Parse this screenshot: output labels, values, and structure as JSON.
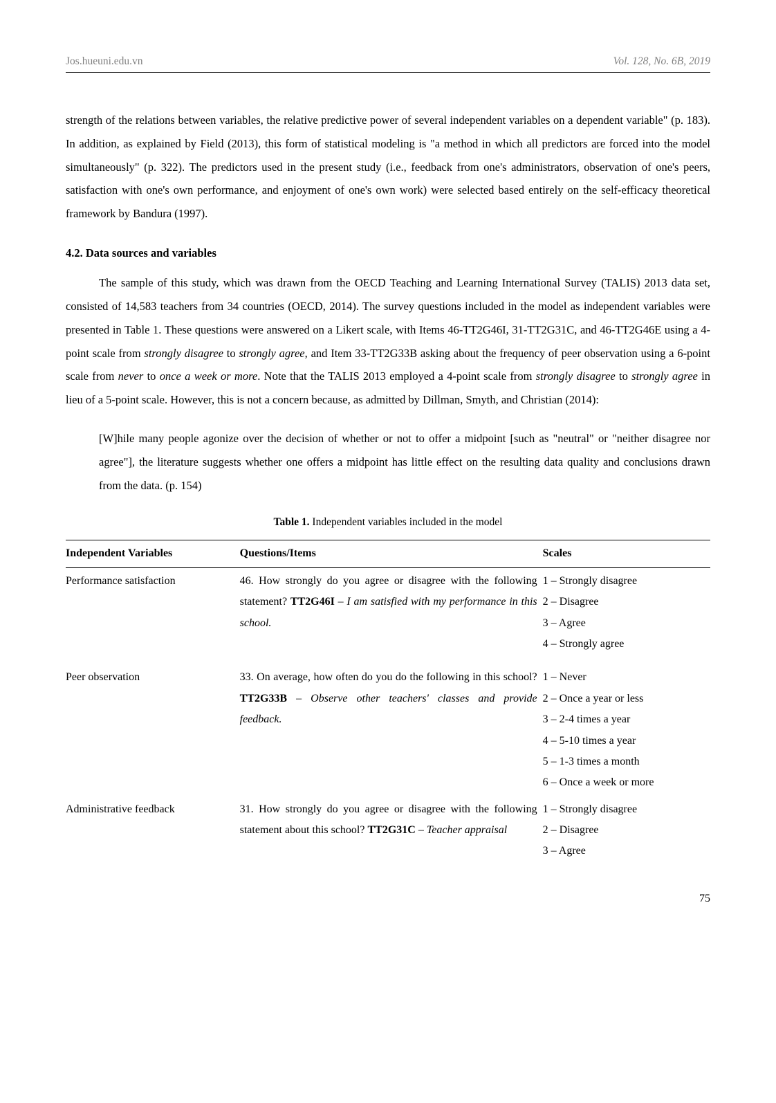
{
  "header": {
    "left": "Jos.hueuni.edu.vn",
    "right": "Vol. 128, No. 6B, 2019"
  },
  "para1": "strength of the relations between variables, the relative predictive power of several independent variables on a dependent variable\" (p. 183). In addition, as explained by Field (2013), this form of statistical modeling is \"a method in which all predictors are forced into the model simultaneously\" (p. 322). The predictors used in the present study (i.e., feedback from one's administrators, observation of one's peers, satisfaction with one's own performance, and enjoyment of one's own work) were selected based entirely on the self-efficacy theoretical framework by Bandura (1997).",
  "section42": "4.2.    Data sources and variables",
  "para2a": "The sample of this study, which was drawn from the OECD Teaching and Learning International Survey (TALIS) 2013 data set, consisted of 14,583 teachers from 34 countries (OECD, 2014). The survey questions included in the model as independent variables were presented in Table 1. These questions were answered on a Likert scale, with Items 46-TT2G46I, 31-TT2G31C, and 46-TT2G46E using a 4-point scale from ",
  "para2b": "strongly disagree",
  "para2c": " to ",
  "para2d": "strongly agree",
  "para2e": ", and Item 33-TT2G33B asking about the frequency of peer observation using a 6-point scale from ",
  "para2f": "never",
  "para2g": " to ",
  "para2h": "once a week or more",
  "para2i": ". Note that the TALIS 2013 employed a 4-point scale from ",
  "para2j": "strongly disagree",
  "para2k": " to ",
  "para2l": "strongly agree",
  "para2m": " in lieu of a 5-point scale. However, this is not a concern because, as admitted by Dillman, Smyth, and Christian (2014):",
  "quote": "[W]hile many people agonize over the decision of whether or not to offer a midpoint [such as \"neutral\" or \"neither disagree nor agree\"], the literature suggests whether one offers a midpoint has little effect on the resulting data quality and conclusions drawn from the data. (p. 154)",
  "tableCaption": {
    "bold": "Table 1.",
    "rest": " Independent variables included in the model"
  },
  "table": {
    "headers": [
      "Independent Variables",
      "Questions/Items",
      "Scales"
    ],
    "rows": [
      {
        "iv": "Performance satisfaction",
        "q_pre": "46. How strongly do you agree or disagree with the following statement? ",
        "q_bold": "TT2G46I",
        "q_mid": " – ",
        "q_ital": "I am satisfied with my performance in this school.",
        "scales": [
          "1 – Strongly disagree",
          "2 – Disagree",
          "3 – Agree",
          "4 – Strongly agree"
        ]
      },
      {
        "iv": "Peer observation",
        "q_pre": "33. On average, how often do you do the following in this school? ",
        "q_bold": "TT2G33B",
        "q_mid": " – ",
        "q_ital": "Observe other teachers' classes and provide feedback.",
        "scales": [
          "1 – Never",
          "2 – Once a year or less",
          "3 – 2-4 times a year",
          "4 – 5-10 times a year",
          "5 – 1-3 times a month",
          "6 – Once a week or more"
        ]
      },
      {
        "iv": "Administrative feedback",
        "q_pre": "31. How strongly do you agree or disagree with the following statement about this school? ",
        "q_bold": "TT2G31C",
        "q_mid": " – ",
        "q_ital": "Teacher appraisal",
        "scales": [
          "1 – Strongly disagree",
          "2 – Disagree",
          "3 – Agree"
        ]
      }
    ]
  },
  "pageNumber": "75"
}
